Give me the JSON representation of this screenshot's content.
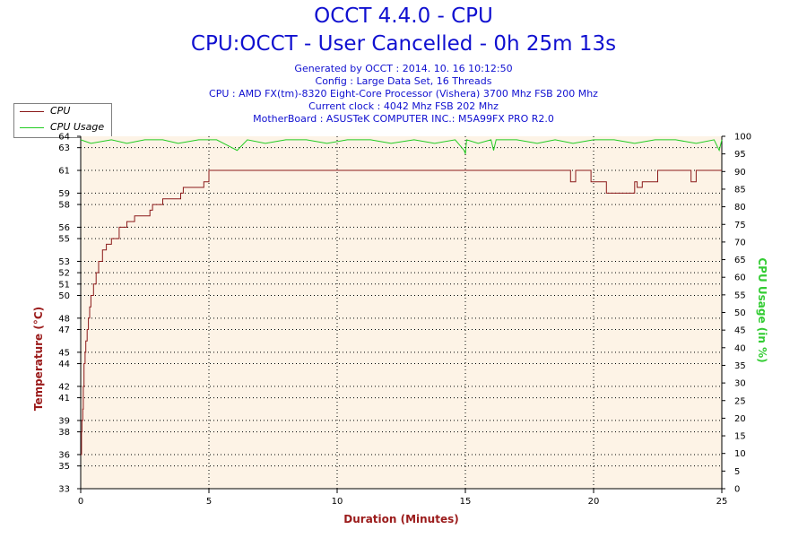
{
  "header": {
    "title": "OCCT 4.4.0 - CPU",
    "subtitle": "CPU:OCCT - User Cancelled - 0h 25m 13s",
    "generated": "Generated by OCCT : 2014. 10. 16 10:12:50",
    "config": "Config : Large Data Set, 16 Threads",
    "cpu": "CPU : AMD FX(tm)-8320 Eight-Core Processor (Vishera) 3700 Mhz FSB 200 Mhz",
    "clock": "Current clock : 4042 Mhz FSB 202 Mhz",
    "motherboard": "MotherBoard : ASUSTeK COMPUTER INC.: M5A99FX PRO R2.0"
  },
  "chart_data": {
    "type": "line",
    "xlabel": "Duration (Minutes)",
    "ylabel": "Temperature (°C)",
    "y2label": "CPU Usage (in %)",
    "xlim": [
      0,
      25
    ],
    "ylim": [
      33,
      64
    ],
    "y2lim": [
      0,
      100
    ],
    "x_ticks": [
      "0",
      "5",
      "10",
      "15",
      "20",
      "25"
    ],
    "y_ticks": [
      "33",
      "35",
      "36",
      "38",
      "39",
      "41",
      "42",
      "44",
      "45",
      "47",
      "48",
      "50",
      "51",
      "52",
      "53",
      "55",
      "56",
      "58",
      "59",
      "61",
      "63",
      "64"
    ],
    "y2_ticks": [
      "0",
      "5",
      "10",
      "15",
      "20",
      "25",
      "30",
      "35",
      "40",
      "45",
      "50",
      "55",
      "60",
      "65",
      "70",
      "75",
      "80",
      "85",
      "90",
      "95",
      "100"
    ],
    "grid": true,
    "legend": "top-left",
    "colors": {
      "cpu": "#8b1a1a",
      "usage": "#22cc22",
      "plot_bg": "#fdf3e6",
      "grid": "#000000"
    },
    "series": [
      {
        "name": "CPU",
        "axis": "left",
        "x": [
          0,
          0.03,
          0.05,
          0.08,
          0.1,
          0.13,
          0.17,
          0.2,
          0.25,
          0.3,
          0.35,
          0.4,
          0.5,
          0.6,
          0.7,
          0.85,
          1.0,
          1.2,
          1.3,
          1.5,
          1.7,
          1.8,
          2.1,
          2.3,
          2.7,
          2.8,
          3.1,
          3.2,
          3.6,
          3.9,
          4.0,
          4.4,
          4.8,
          5.0,
          5.5,
          10.0,
          15.0,
          18.9,
          19.1,
          19.3,
          19.7,
          19.9,
          20.5,
          20.7,
          21.4,
          21.6,
          21.7,
          21.9,
          22.3,
          22.5,
          23.7,
          23.8,
          24.0,
          25.0
        ],
        "y": [
          36,
          38,
          39,
          40,
          42,
          44,
          45,
          46,
          47,
          48,
          49,
          50,
          51,
          52,
          53,
          54,
          54.5,
          55,
          55,
          56,
          56,
          56.5,
          57,
          57,
          57.5,
          58,
          58,
          58.5,
          58.5,
          59,
          59.5,
          59.5,
          60,
          61,
          61,
          61,
          61,
          61,
          60,
          61,
          61,
          60,
          59,
          59,
          59,
          60,
          59.5,
          60,
          60,
          61,
          61,
          60,
          61,
          61
        ]
      },
      {
        "name": "CPU Usage",
        "axis": "right",
        "x": [
          0,
          0.4,
          1.2,
          1.8,
          2.5,
          3.2,
          3.8,
          4.6,
          5.3,
          6.1,
          6.5,
          7.2,
          8.0,
          8.8,
          9.6,
          10.4,
          11.3,
          12.1,
          13.0,
          13.8,
          14.6,
          14.95,
          15.0,
          15.05,
          15.5,
          16.0,
          16.1,
          16.2,
          17.0,
          17.8,
          18.5,
          19.2,
          20.0,
          20.8,
          21.6,
          22.4,
          23.2,
          24.0,
          24.7,
          24.9,
          25.0
        ],
        "y": [
          99,
          98,
          99,
          98,
          99,
          99,
          98,
          99,
          99,
          96,
          99,
          98,
          99,
          99,
          98,
          99,
          99,
          98,
          99,
          98,
          99,
          96,
          95,
          99,
          98,
          99,
          96,
          99,
          99,
          98,
          99,
          98,
          99,
          99,
          98,
          99,
          99,
          98,
          99,
          96,
          99
        ]
      }
    ]
  }
}
